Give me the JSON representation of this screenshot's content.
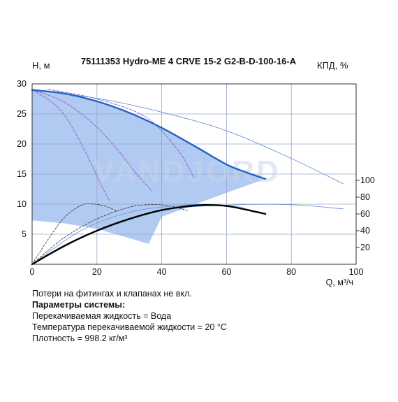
{
  "chart_data": {
    "type": "line",
    "title": "75111353 Hydro-ME 4 CRVE 15-2 G2-B-D-100-16-A",
    "xlabel": "Q, м³/ч",
    "ylabel": "H, м",
    "y2label": "КПД, %",
    "xlim": [
      0,
      100
    ],
    "ylim": [
      0,
      30
    ],
    "y2lim": [
      0,
      100
    ],
    "xticks": [
      0,
      20,
      40,
      60,
      80,
      100
    ],
    "yticks": [
      5,
      10,
      15,
      20,
      25,
      30
    ],
    "y2ticks": [
      20,
      40,
      60,
      80,
      100
    ],
    "grid": true,
    "watermark": "VANDJORD",
    "operating_range": {
      "upper": [
        [
          0,
          29
        ],
        [
          10,
          28.4
        ],
        [
          20,
          27.1
        ],
        [
          30,
          25.2
        ],
        [
          40,
          22.7
        ],
        [
          50,
          19.7
        ],
        [
          60,
          16.6
        ],
        [
          72,
          14.2
        ]
      ],
      "lower": [
        [
          72,
          14.2
        ],
        [
          60,
          11.9
        ],
        [
          50,
          9.9
        ],
        [
          40,
          7.9
        ],
        [
          36,
          3.4
        ],
        [
          20,
          5.9
        ],
        [
          10,
          6.8
        ],
        [
          0,
          7.3
        ]
      ]
    },
    "series": [
      {
        "role": "pump-curve-max",
        "color": "#1f63c7",
        "points": [
          [
            0,
            29
          ],
          [
            10,
            28.4
          ],
          [
            20,
            27.1
          ],
          [
            30,
            25.2
          ],
          [
            40,
            22.7
          ],
          [
            50,
            19.7
          ],
          [
            60,
            16.6
          ],
          [
            66,
            15.3
          ],
          [
            72,
            14.2
          ]
        ]
      },
      {
        "role": "efficiency",
        "color": "#000000",
        "points": [
          [
            0,
            0
          ],
          [
            10,
            22
          ],
          [
            20,
            40
          ],
          [
            30,
            54
          ],
          [
            40,
            64.5
          ],
          [
            50,
            70
          ],
          [
            55,
            70.6
          ],
          [
            60,
            69.5
          ],
          [
            65,
            66
          ],
          [
            72,
            60
          ]
        ]
      },
      {
        "role": "pump-curve-extended",
        "color": "#6f92d8",
        "points": [
          [
            0,
            29
          ],
          [
            20,
            27.6
          ],
          [
            40,
            25.3
          ],
          [
            60,
            22.2
          ],
          [
            80,
            17.6
          ],
          [
            96,
            13.4
          ]
        ]
      },
      {
        "role": "efficiency-extended",
        "color": "#6f92d8",
        "points": [
          [
            0,
            0
          ],
          [
            20,
            40
          ],
          [
            40,
            64
          ],
          [
            60,
            70.5
          ],
          [
            80,
            71
          ],
          [
            96,
            66
          ]
        ]
      },
      {
        "role": "pump-curve-reduced-1",
        "color": "#8b5fc0",
        "points": [
          [
            0,
            29
          ],
          [
            8,
            27.5
          ],
          [
            14,
            25.5
          ],
          [
            20,
            22.8
          ],
          [
            26,
            19.3
          ],
          [
            32,
            15.2
          ],
          [
            37,
            12.2
          ]
        ]
      },
      {
        "role": "pump-curve-reduced-2",
        "color": "#8b5fc0",
        "points": [
          [
            0,
            29
          ],
          [
            6,
            27
          ],
          [
            10,
            24.8
          ],
          [
            14,
            21.2
          ],
          [
            18,
            17
          ],
          [
            21,
            13.5
          ],
          [
            24,
            10.5
          ]
        ]
      },
      {
        "role": "pump-curve-reduced-3",
        "color": "#8b5fc0",
        "points": [
          [
            5,
            29.1
          ],
          [
            20,
            27.5
          ],
          [
            35,
            24.5
          ],
          [
            45,
            19
          ],
          [
            50,
            14.3
          ]
        ]
      },
      {
        "role": "efficiency-reduced-1",
        "color": "#333333",
        "points": [
          [
            0,
            0
          ],
          [
            5,
            30
          ],
          [
            10,
            56
          ],
          [
            15,
            70
          ],
          [
            18,
            72
          ],
          [
            22,
            70
          ],
          [
            26,
            64
          ]
        ]
      },
      {
        "role": "efficiency-reduced-2",
        "color": "#333333",
        "points": [
          [
            0,
            0
          ],
          [
            10,
            32
          ],
          [
            20,
            54
          ],
          [
            30,
            68
          ],
          [
            36,
            71
          ],
          [
            42,
            70
          ],
          [
            48,
            64
          ]
        ]
      },
      {
        "role": "efficiency-reduced-3",
        "color": "#6f92d8",
        "points": [
          [
            0,
            0
          ],
          [
            15,
            40
          ],
          [
            30,
            62
          ],
          [
            45,
            70
          ],
          [
            55,
            71
          ],
          [
            65,
            68
          ]
        ]
      }
    ]
  },
  "notes": {
    "line1": "Потери на фитингах и клапанах не вкл.",
    "line2": "Параметры системы:",
    "line3": "Перекачиваемая жидкость = Вода",
    "line4": "Температура перекачиваемой жидкости = 20 °C",
    "line5": "Плотность = 998.2 кг/м³"
  },
  "colors": {
    "area_fill": "#a8c4f0",
    "grid": "#9aa6c8",
    "max_curve": "#1f63c7",
    "efficiency": "#000000",
    "watermark": "#c7d4ec"
  }
}
